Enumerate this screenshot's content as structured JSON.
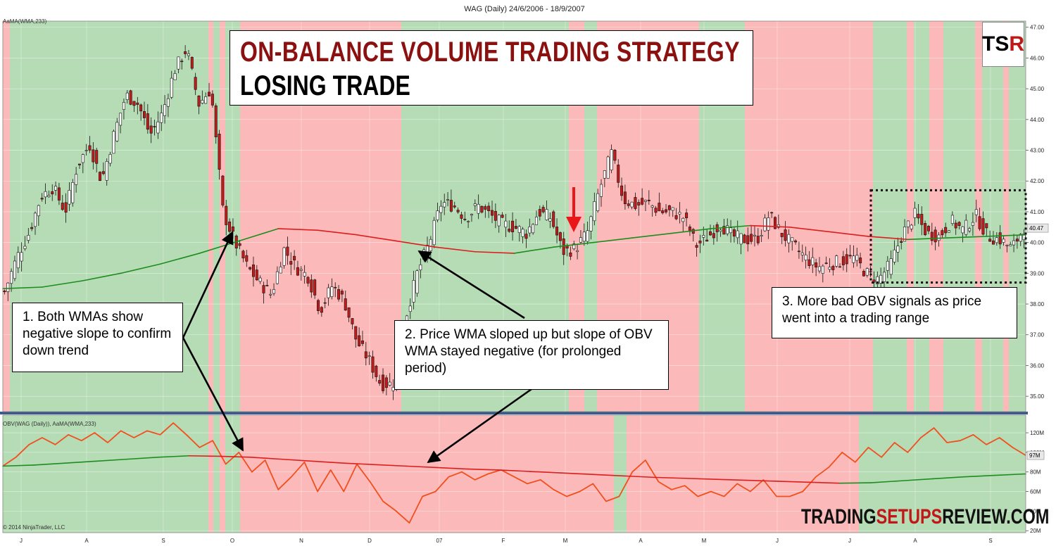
{
  "window_title": "WAG (Daily)  24/6/2006 - 18/9/2007",
  "title": {
    "line1": "ON-BALANCE VOLUME TRADING STRATEGY",
    "line2": "LOSING TRADE"
  },
  "logo": {
    "text_a": "TS",
    "text_b": "R"
  },
  "brand": {
    "part1": "TRADING",
    "part2": "SETUPS",
    "part3": "REVIEW.COM"
  },
  "copyright": "© 2014 NinjaTrader, LLC",
  "annotations": [
    {
      "id": "note-1",
      "text": "1. Both WMAs show negative slope to confirm down trend"
    },
    {
      "id": "note-2",
      "text": "2. Price WMA sloped up but slope of OBV WMA stayed negative (for prolonged period)"
    },
    {
      "id": "note-3",
      "text": "3. More bad OBV signals as price went into a trading range"
    }
  ],
  "colors": {
    "bull_zone": "#b6dcb6",
    "bear_zone": "#fcb9b9",
    "up_candle": "#ffffff",
    "down_candle": "#c41a1a",
    "wma_up": "#1e8c1e",
    "wma_down": "#dc1e1e",
    "obv_line": "#f0501e",
    "separator": "#3c5a8c",
    "title_red": "#8b1010",
    "arrow_red": "#e81818"
  },
  "chart_data": [
    {
      "type": "candlestick",
      "label": "AaMA(WMA,233)",
      "x_axis": {
        "ticks": [
          "J",
          "A",
          "S",
          "O",
          "N",
          "D",
          "07",
          "F",
          "M",
          "A",
          "M",
          "J",
          "J",
          "A",
          "S"
        ]
      },
      "y_axis": {
        "range": [
          34.5,
          47.2
        ],
        "ticks": [
          "35.00",
          "36.00",
          "37.00",
          "38.00",
          "39.00",
          "40.00",
          "41.00",
          "42.00",
          "43.00",
          "44.00",
          "45.00",
          "46.00",
          "47.00"
        ]
      },
      "last_price": "40.47",
      "close_series": [
        38.4,
        39.5,
        40.3,
        41.5,
        41.8,
        41.0,
        42.5,
        43.2,
        42.0,
        43.5,
        44.8,
        44.5,
        43.5,
        44.2,
        45.6,
        46.3,
        44.5,
        45.0,
        41.0,
        40.0,
        39.2,
        38.7,
        38.3,
        39.8,
        39.2,
        38.9,
        37.8,
        38.6,
        38.1,
        36.8,
        36.2,
        35.4,
        35.4,
        37.5,
        39.0,
        40.0,
        41.3,
        41.2,
        40.8,
        41.2,
        40.9,
        40.6,
        40.5,
        40.3,
        41.0,
        40.8,
        39.7,
        39.8,
        40.3,
        41.7,
        42.9,
        41.4,
        41.2,
        41.3,
        41.0,
        41.0,
        40.8,
        39.9,
        40.2,
        40.6,
        40.2,
        40.1,
        40.1,
        40.9,
        40.3,
        39.9,
        39.5,
        39.2,
        39.3,
        39.4,
        39.5,
        39.0,
        38.8,
        39.3,
        40.3,
        40.9,
        40.3,
        40.2,
        40.7,
        40.4,
        40.9,
        40.2,
        40.1,
        39.8,
        40.5
      ],
      "wma_series": [
        38.5,
        38.55,
        38.75,
        39.0,
        39.3,
        39.65,
        40.05,
        40.45,
        40.4,
        40.25,
        40.05,
        39.85,
        39.7,
        39.65,
        39.85,
        40.0,
        40.15,
        40.3,
        40.45,
        40.55,
        40.5,
        40.35,
        40.2,
        40.1,
        40.15,
        40.2,
        40.25
      ],
      "wma_turns": [
        {
          "from": "J",
          "slope": "up"
        },
        {
          "from": "O",
          "slope": "down"
        },
        {
          "from": "D",
          "slope": "up"
        }
      ],
      "signal_arrow": {
        "at": "M",
        "direction": "down"
      },
      "range_box": {
        "from": "J",
        "to": "S",
        "low": 38.7,
        "high": 41.7
      }
    },
    {
      "type": "line",
      "label": "OBV(WAG (Daily)), AaMA(WMA,233)",
      "y_axis": {
        "range": [
          18,
          138
        ],
        "ticks": [
          "20M",
          "40M",
          "60M",
          "80M",
          "100M",
          "120M"
        ]
      },
      "last_value": "97M",
      "obv_series": [
        86,
        95,
        108,
        115,
        108,
        118,
        112,
        120,
        110,
        122,
        115,
        122,
        118,
        130,
        118,
        105,
        112,
        88,
        100,
        80,
        92,
        62,
        75,
        90,
        60,
        82,
        60,
        88,
        70,
        50,
        40,
        28,
        55,
        60,
        75,
        80,
        72,
        78,
        82,
        75,
        68,
        72,
        62,
        55,
        60,
        68,
        50,
        55,
        80,
        92,
        70,
        62,
        66,
        55,
        60,
        55,
        68,
        60,
        72,
        55,
        55,
        60,
        75,
        85,
        100,
        90,
        105,
        95,
        110,
        100,
        115,
        125,
        110,
        112,
        118,
        108,
        115,
        105,
        97
      ],
      "wma_series": [
        86,
        87,
        89,
        91,
        93,
        95,
        96.5,
        96,
        95,
        93,
        91,
        89,
        87.5,
        86,
        84.5,
        83,
        82,
        80.5,
        79,
        77.5,
        76,
        74.5,
        73.5,
        72.5,
        71.5,
        70.5,
        69.5,
        68.5,
        69,
        71,
        73,
        75,
        76.5,
        78
      ]
    }
  ]
}
